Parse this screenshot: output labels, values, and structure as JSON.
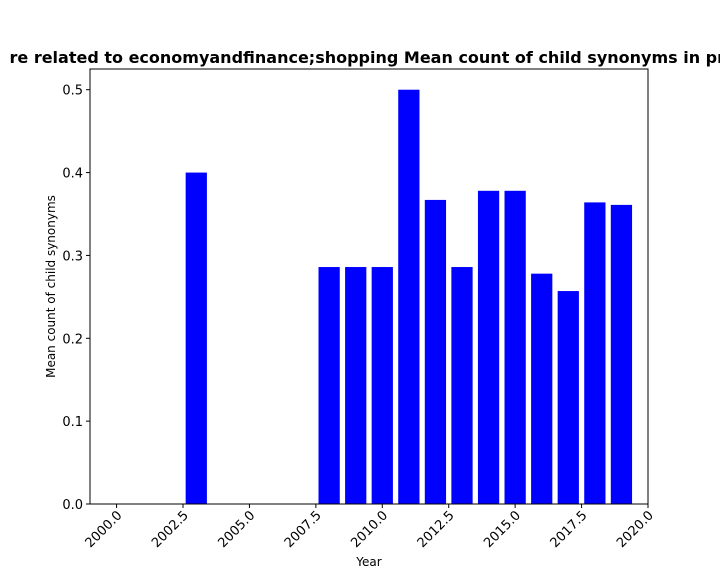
{
  "chart_data": {
    "type": "bar",
    "title": "re related to economyandfinance;shopping Mean count of child synonyms in pri",
    "xlabel": "Year",
    "ylabel": "Mean count of child synonyms",
    "x": [
      2003,
      2008,
      2009,
      2010,
      2011,
      2012,
      2013,
      2014,
      2015,
      2016,
      2017,
      2018,
      2019
    ],
    "values": [
      0.4,
      0.286,
      0.286,
      0.286,
      0.5,
      0.367,
      0.286,
      0.378,
      0.378,
      0.278,
      0.257,
      0.364,
      0.361
    ],
    "xlim": [
      1999.0,
      2020.0
    ],
    "ylim": [
      0,
      0.525
    ],
    "xticks": [
      "2000.0",
      "2002.5",
      "2005.0",
      "2007.5",
      "2010.0",
      "2012.5",
      "2015.0",
      "2017.5",
      "2020.0"
    ],
    "yticks": [
      "0.0",
      "0.1",
      "0.2",
      "0.3",
      "0.4",
      "0.5"
    ],
    "bar_color": "#0000ff",
    "grid": false,
    "legend": "none"
  }
}
